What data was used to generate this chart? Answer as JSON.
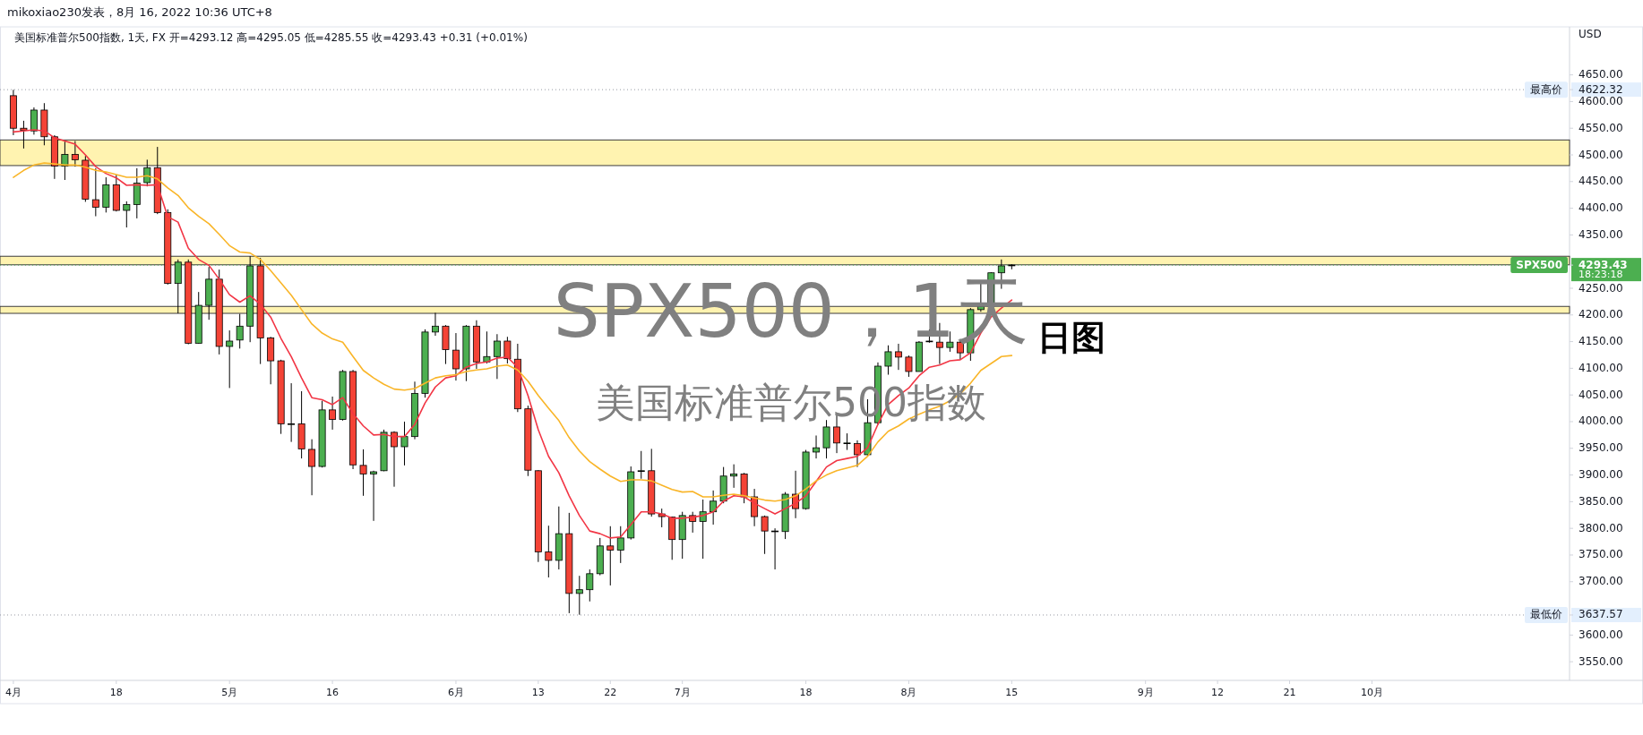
{
  "chart_data": {
    "type": "candlestick",
    "subtitle": "mikoxiao230发表，8月 16, 2022 10:36 UTC+8",
    "title": "美国标准普尔500指数, 1天, FX  开=4293.12  高=4295.05  低=4285.55  收=4293.43  +0.31 (+0.01%)",
    "ylabel": "USD",
    "annotations": [
      "SPX500，1天",
      "日图",
      "美国标准普尔500指数",
      "18:23:18"
    ],
    "categories": [
      "4月",
      null,
      null,
      null,
      null,
      null,
      null,
      null,
      null,
      null,
      "18",
      null,
      null,
      null,
      null,
      null,
      null,
      null,
      null,
      null,
      null,
      "5月",
      null,
      null,
      null,
      null,
      null,
      null,
      null,
      null,
      null,
      "16",
      null,
      null,
      null,
      null,
      null,
      null,
      null,
      null,
      null,
      null,
      null,
      "6月",
      null,
      null,
      null,
      null,
      null,
      null,
      null,
      "13",
      null,
      null,
      null,
      null,
      null,
      null,
      "22",
      null,
      null,
      null,
      null,
      null,
      null,
      "7月",
      null,
      null,
      null,
      null,
      null,
      null,
      null,
      null,
      null,
      null,
      null,
      "18",
      null,
      null,
      null,
      null,
      null,
      null,
      null,
      null,
      null,
      "8月",
      null,
      null,
      null,
      null,
      null,
      null,
      null,
      null,
      null,
      "15",
      null,
      null,
      null,
      null,
      null,
      null,
      null,
      null,
      null,
      null,
      null,
      null,
      "9月",
      null,
      null,
      null,
      null,
      null,
      null,
      "12",
      null,
      null,
      null,
      null,
      null,
      null,
      "21",
      null,
      null,
      null,
      null,
      null,
      null,
      null,
      "10月",
      null,
      null,
      null,
      null,
      null,
      null,
      null,
      null,
      null,
      null,
      null,
      null,
      null,
      null,
      null,
      null,
      null,
      null
    ],
    "ohlc": [
      [
        4611,
        4622,
        4537,
        4550
      ],
      [
        4550,
        4564,
        4512,
        4546
      ],
      [
        4545,
        4589,
        4538,
        4584
      ],
      [
        4584,
        4597,
        4518,
        4534
      ],
      [
        4534,
        4537,
        4455,
        4479
      ],
      [
        4479,
        4525,
        4453,
        4501
      ],
      [
        4501,
        4526,
        4478,
        4491
      ],
      [
        4490,
        4498,
        4412,
        4417
      ],
      [
        4416,
        4475,
        4385,
        4402
      ],
      [
        4402,
        4458,
        4392,
        4444
      ],
      [
        4444,
        4463,
        4394,
        4396
      ],
      [
        4396,
        4413,
        4364,
        4407
      ],
      [
        4407,
        4475,
        4381,
        4447
      ],
      [
        4448,
        4491,
        4441,
        4476
      ],
      [
        4476,
        4515,
        4389,
        4392
      ],
      [
        4392,
        4398,
        4257,
        4259
      ],
      [
        4259,
        4304,
        4203,
        4299
      ],
      [
        4299,
        4304,
        4145,
        4147
      ],
      [
        4147,
        4243,
        4146,
        4218
      ],
      [
        4218,
        4290,
        4191,
        4267
      ],
      [
        4267,
        4285,
        4126,
        4141
      ],
      [
        4141,
        4171,
        4063,
        4151
      ],
      [
        4153,
        4202,
        4137,
        4179
      ],
      [
        4179,
        4310,
        4149,
        4292
      ],
      [
        4292,
        4307,
        4108,
        4157
      ],
      [
        4157,
        4159,
        4070,
        4114
      ],
      [
        4114,
        4116,
        3977,
        3996
      ],
      [
        3996,
        4072,
        3962,
        3996
      ],
      [
        3996,
        4057,
        3931,
        3949
      ],
      [
        3948,
        3967,
        3862,
        3916
      ],
      [
        3916,
        4039,
        3914,
        4022
      ],
      [
        4022,
        4047,
        3985,
        4004
      ],
      [
        4004,
        4097,
        4002,
        4094
      ],
      [
        4094,
        4097,
        3911,
        3919
      ],
      [
        3918,
        3948,
        3861,
        3902
      ],
      [
        3902,
        3908,
        3814,
        3906
      ],
      [
        3908,
        3985,
        3907,
        3980
      ],
      [
        3980,
        3982,
        3878,
        3953
      ],
      [
        3953,
        4000,
        3918,
        3972
      ],
      [
        3972,
        4075,
        3967,
        4053
      ],
      [
        4053,
        4173,
        4045,
        4168
      ],
      [
        4168,
        4204,
        4161,
        4179
      ],
      [
        4179,
        4181,
        4108,
        4135
      ],
      [
        4134,
        4166,
        4077,
        4099
      ],
      [
        4099,
        4181,
        4076,
        4179
      ],
      [
        4179,
        4190,
        4099,
        4112
      ],
      [
        4112,
        4169,
        4109,
        4122
      ],
      [
        4122,
        4164,
        4080,
        4151
      ],
      [
        4151,
        4159,
        4109,
        4118
      ],
      [
        4117,
        4146,
        4018,
        4024
      ],
      [
        4024,
        4030,
        3898,
        3909
      ],
      [
        3908,
        3909,
        3737,
        3756
      ],
      [
        3756,
        3805,
        3708,
        3740
      ],
      [
        3740,
        3841,
        3723,
        3790
      ],
      [
        3790,
        3829,
        3641,
        3678
      ],
      [
        3678,
        3711,
        3638,
        3685
      ],
      [
        3685,
        3723,
        3663,
        3715
      ],
      [
        3715,
        3782,
        3712,
        3767
      ],
      [
        3767,
        3804,
        3693,
        3759
      ],
      [
        3759,
        3804,
        3735,
        3782
      ],
      [
        3782,
        3916,
        3779,
        3906
      ],
      [
        3908,
        3945,
        3893,
        3908
      ],
      [
        3908,
        3949,
        3822,
        3827
      ],
      [
        3827,
        3837,
        3802,
        3822
      ],
      [
        3821,
        3822,
        3741,
        3779
      ],
      [
        3779,
        3831,
        3743,
        3824
      ],
      [
        3824,
        3831,
        3792,
        3813
      ],
      [
        3813,
        3854,
        3743,
        3831
      ],
      [
        3831,
        3871,
        3807,
        3851
      ],
      [
        3851,
        3915,
        3847,
        3898
      ],
      [
        3898,
        3920,
        3876,
        3902
      ],
      [
        3902,
        3904,
        3847,
        3859
      ],
      [
        3859,
        3874,
        3804,
        3822
      ],
      [
        3822,
        3824,
        3752,
        3795
      ],
      [
        3795,
        3800,
        3723,
        3795
      ],
      [
        3794,
        3868,
        3780,
        3864
      ],
      [
        3864,
        3908,
        3819,
        3837
      ],
      [
        3837,
        3947,
        3835,
        3943
      ],
      [
        3943,
        3974,
        3931,
        3951
      ],
      [
        3951,
        4003,
        3931,
        3990
      ],
      [
        3990,
        4014,
        3941,
        3960
      ],
      [
        3960,
        3978,
        3947,
        3960
      ],
      [
        3959,
        3965,
        3915,
        3938
      ],
      [
        3938,
        4042,
        3936,
        3998
      ],
      [
        3998,
        4111,
        3994,
        4104
      ],
      [
        4104,
        4143,
        4088,
        4131
      ],
      [
        4131,
        4146,
        4097,
        4121
      ],
      [
        4121,
        4124,
        4084,
        4094
      ],
      [
        4094,
        4151,
        4094,
        4149
      ],
      [
        4151,
        4173,
        4148,
        4151
      ],
      [
        4149,
        4185,
        4108,
        4139
      ],
      [
        4139,
        4169,
        4131,
        4149
      ],
      [
        4149,
        4155,
        4116,
        4129
      ],
      [
        4129,
        4213,
        4114,
        4210
      ],
      [
        4210,
        4260,
        4206,
        4216
      ],
      [
        4216,
        4280,
        4210,
        4279
      ],
      [
        4279,
        4304,
        4249,
        4292
      ],
      [
        4293.12,
        4295.05,
        4285.55,
        4293.43
      ],
      null,
      null,
      null,
      null,
      null,
      null,
      null,
      null,
      null,
      null,
      null,
      null,
      null,
      null,
      null,
      null,
      null,
      null,
      null,
      null,
      null,
      null,
      null,
      null,
      null,
      null,
      null,
      null,
      null,
      null,
      null,
      null,
      null,
      null,
      null,
      null,
      null,
      null,
      null,
      null,
      null,
      null,
      null,
      null,
      null,
      null,
      null,
      null,
      null,
      null,
      null,
      null,
      null
    ],
    "series": [
      {
        "type": "line",
        "color": "#f23645",
        "values": [
          4543,
          4545,
          4547,
          4545,
          4532,
          4526,
          4520,
          4500,
          4478,
          4465,
          4457,
          4443,
          4444,
          4443,
          4444,
          4384,
          4374,
          4325,
          4304,
          4293,
          4267,
          4238,
          4224,
          4236,
          4220,
          4196,
          4156,
          4122,
          4082,
          4045,
          4041,
          4032,
          4045,
          4015,
          3992,
          3975,
          3976,
          3972,
          3972,
          3995,
          4035,
          4065,
          4082,
          4086,
          4102,
          4109,
          4112,
          4119,
          4121,
          4102,
          4049,
          3985,
          3935,
          3904,
          3861,
          3824,
          3795,
          3790,
          3782,
          3784,
          3807,
          3831,
          3831,
          3827,
          3819,
          3819,
          3821,
          3824,
          3831,
          3851,
          3861,
          3859,
          3847,
          3837,
          3827,
          3837,
          3847,
          3861,
          3888,
          3915,
          3927,
          3931,
          3935,
          3951,
          3995,
          4032,
          4049,
          4063,
          4086,
          4102,
          4106,
          4114,
          4116,
          4129,
          4166,
          4196,
          4213,
          4228,
          null,
          null,
          null,
          null,
          null,
          null,
          null,
          null,
          null,
          null,
          null,
          null,
          null,
          null,
          null,
          null,
          null,
          null,
          null,
          null,
          null,
          null,
          null,
          null,
          null,
          null,
          null,
          null,
          null,
          null,
          null,
          null,
          null,
          null,
          null,
          null,
          null,
          null,
          null,
          null,
          null,
          null,
          null,
          null,
          null,
          null,
          null,
          null,
          null,
          null,
          null,
          null,
          null
        ]
      },
      {
        "type": "line",
        "color": "#f9b528",
        "values": [
          4458,
          4471,
          4481,
          4485,
          4483,
          4481,
          4481,
          4477,
          4471,
          4468,
          4463,
          4458,
          4458,
          4461,
          4455,
          4438,
          4424,
          4401,
          4385,
          4371,
          4351,
          4330,
          4318,
          4316,
          4304,
          4283,
          4260,
          4237,
          4210,
          4183,
          4166,
          4155,
          4149,
          4122,
          4096,
          4082,
          4070,
          4061,
          4059,
          4062,
          4072,
          4082,
          4086,
          4088,
          4094,
          4097,
          4099,
          4104,
          4106,
          4097,
          4076,
          4049,
          4025,
          4002,
          3970,
          3945,
          3925,
          3911,
          3898,
          3888,
          3891,
          3891,
          3889,
          3881,
          3873,
          3868,
          3869,
          3859,
          3859,
          3862,
          3864,
          3861,
          3857,
          3853,
          3851,
          3854,
          3861,
          3874,
          3889,
          3900,
          3908,
          3913,
          3918,
          3935,
          3962,
          3982,
          3992,
          4005,
          4014,
          4022,
          4029,
          4039,
          4052,
          4072,
          4096,
          4109,
          4122,
          4124,
          null,
          null,
          null,
          null,
          null,
          null,
          null,
          null,
          null,
          null,
          null,
          null,
          null,
          null,
          null,
          null,
          null,
          null,
          null,
          null,
          null,
          null,
          null,
          null,
          null,
          null,
          null,
          null,
          null,
          null,
          null,
          null,
          null,
          null,
          null,
          null,
          null,
          null,
          null,
          null,
          null,
          null,
          null,
          null,
          null,
          null,
          null,
          null,
          null,
          null,
          null,
          null,
          null
        ]
      }
    ],
    "bands": [
      {
        "axis": "y",
        "from": 4480,
        "to": 4528,
        "color": "#fff3b0"
      },
      {
        "axis": "y",
        "from": 4294,
        "to": 4310,
        "color": "#fff3b0"
      },
      {
        "axis": "y",
        "from": 4203,
        "to": 4216,
        "color": "#fff3b0"
      }
    ],
    "ref_lines": [
      {
        "axis": "y",
        "value": 4622.32,
        "label": "最高价",
        "color": "#9598a1",
        "line_style": "dotted"
      },
      {
        "axis": "y",
        "value": 4293.43,
        "label": "SPX500",
        "color": "#4caf50",
        "line_style": "dotted"
      },
      {
        "axis": "y",
        "value": 3637.57,
        "label": "最低价",
        "color": "#9598a1",
        "line_style": "dotted"
      }
    ],
    "ylim": [
      3515,
      4740
    ],
    "yticks": [
      {
        "value": 3550,
        "label": "3550.00"
      },
      {
        "value": 3600,
        "label": "3600.00"
      },
      {
        "value": 3637.57,
        "label": "3637.57"
      },
      {
        "value": 4293.43,
        "label": "4293.43"
      },
      {
        "value": 4622.32,
        "label": "4622.32"
      },
      {
        "value": 3700,
        "label": "3700.00"
      },
      {
        "value": 3750,
        "label": "3750.00"
      },
      {
        "value": 3800,
        "label": "3800.00"
      },
      {
        "value": 3850,
        "label": "3850.00"
      },
      {
        "value": 3900,
        "label": "3900.00"
      },
      {
        "value": 3950,
        "label": "3950.00"
      },
      {
        "value": 4000,
        "label": "4000.00"
      },
      {
        "value": 4050,
        "label": "4050.00"
      },
      {
        "value": 4100,
        "label": "4100.00"
      },
      {
        "value": 4150,
        "label": "4150.00"
      },
      {
        "value": 4200,
        "label": "4200.00"
      },
      {
        "value": 4250,
        "label": "4250.00"
      },
      {
        "value": 4350,
        "label": "4350.00"
      },
      {
        "value": 4400,
        "label": "4400.00"
      },
      {
        "value": 4450,
        "label": "4450.00"
      },
      {
        "value": 4500,
        "label": "4500.00"
      },
      {
        "value": 4550,
        "label": "4550.00"
      },
      {
        "value": 4600,
        "label": "4600.00"
      },
      {
        "value": 4650,
        "label": "4650.00"
      }
    ],
    "grid": false
  }
}
